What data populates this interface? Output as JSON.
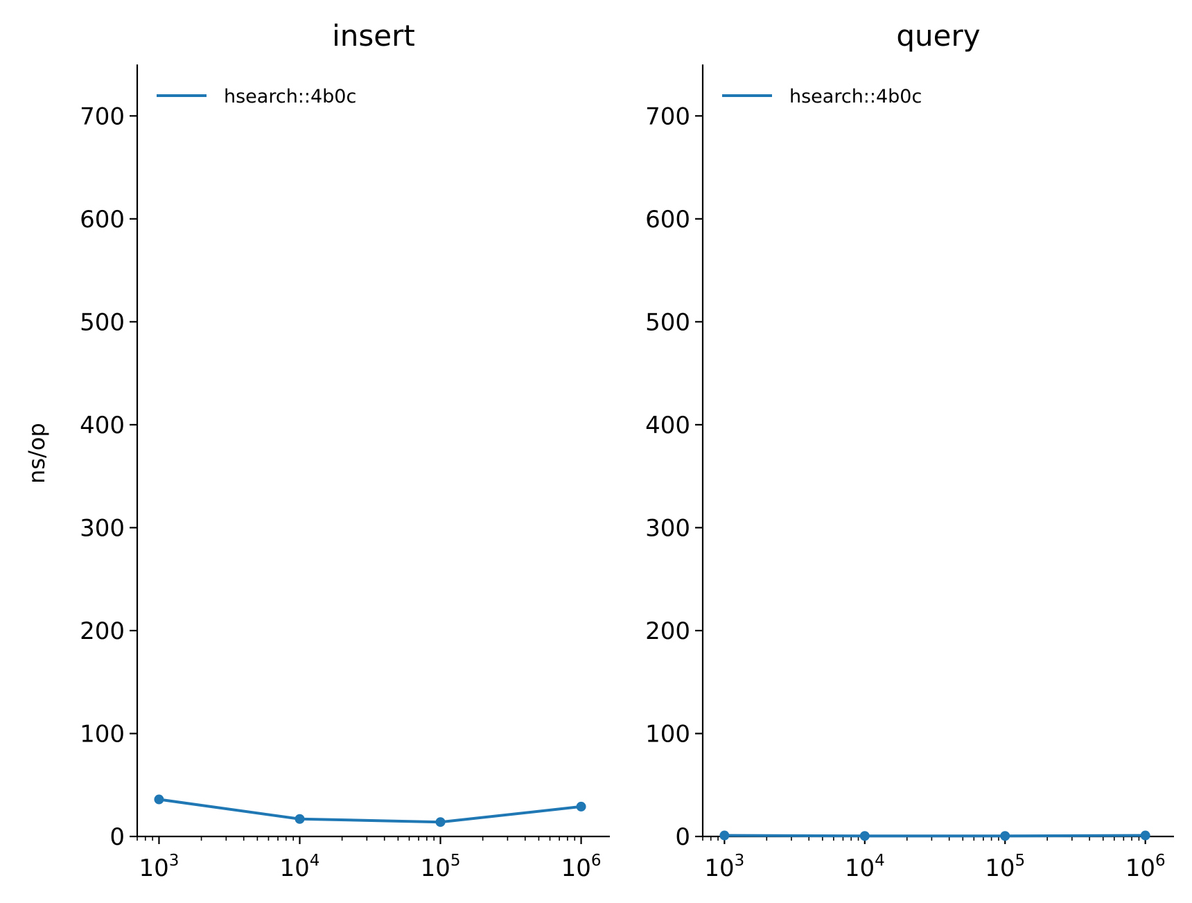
{
  "colors": {
    "series": "#1f77b4",
    "axis": "#000000"
  },
  "ylabel": "ns/op",
  "chart_data": [
    {
      "type": "line",
      "title": "insert",
      "xscale": "log",
      "xlim": [
        700,
        1600000
      ],
      "ylim": [
        0,
        750
      ],
      "x_ticks": [
        1000,
        10000,
        100000,
        1000000
      ],
      "x_tick_labels": [
        {
          "base": "10",
          "exp": "3"
        },
        {
          "base": "10",
          "exp": "4"
        },
        {
          "base": "10",
          "exp": "5"
        },
        {
          "base": "10",
          "exp": "6"
        }
      ],
      "y_ticks": [
        0,
        100,
        200,
        300,
        400,
        500,
        600,
        700
      ],
      "y_tick_labels": [
        "0",
        "100",
        "200",
        "300",
        "400",
        "500",
        "600",
        "700"
      ],
      "ylabel": "ns/op",
      "legend": "top-left",
      "grid": false,
      "series": [
        {
          "name": "hsearch::4b0c",
          "x": [
            1000,
            10000,
            100000,
            1000000
          ],
          "y": [
            36,
            17,
            14,
            29
          ]
        }
      ]
    },
    {
      "type": "line",
      "title": "query",
      "xscale": "log",
      "xlim": [
        700,
        1600000
      ],
      "ylim": [
        0,
        750
      ],
      "x_ticks": [
        1000,
        10000,
        100000,
        1000000
      ],
      "x_tick_labels": [
        {
          "base": "10",
          "exp": "3"
        },
        {
          "base": "10",
          "exp": "4"
        },
        {
          "base": "10",
          "exp": "5"
        },
        {
          "base": "10",
          "exp": "6"
        }
      ],
      "y_ticks": [
        0,
        100,
        200,
        300,
        400,
        500,
        600,
        700
      ],
      "y_tick_labels": [
        "0",
        "100",
        "200",
        "300",
        "400",
        "500",
        "600",
        "700"
      ],
      "ylabel": "",
      "legend": "top-left",
      "grid": false,
      "series": [
        {
          "name": "hsearch::4b0c",
          "x": [
            1000,
            10000,
            100000,
            1000000
          ],
          "y": [
            1,
            0.5,
            0.5,
            1
          ]
        }
      ]
    }
  ]
}
